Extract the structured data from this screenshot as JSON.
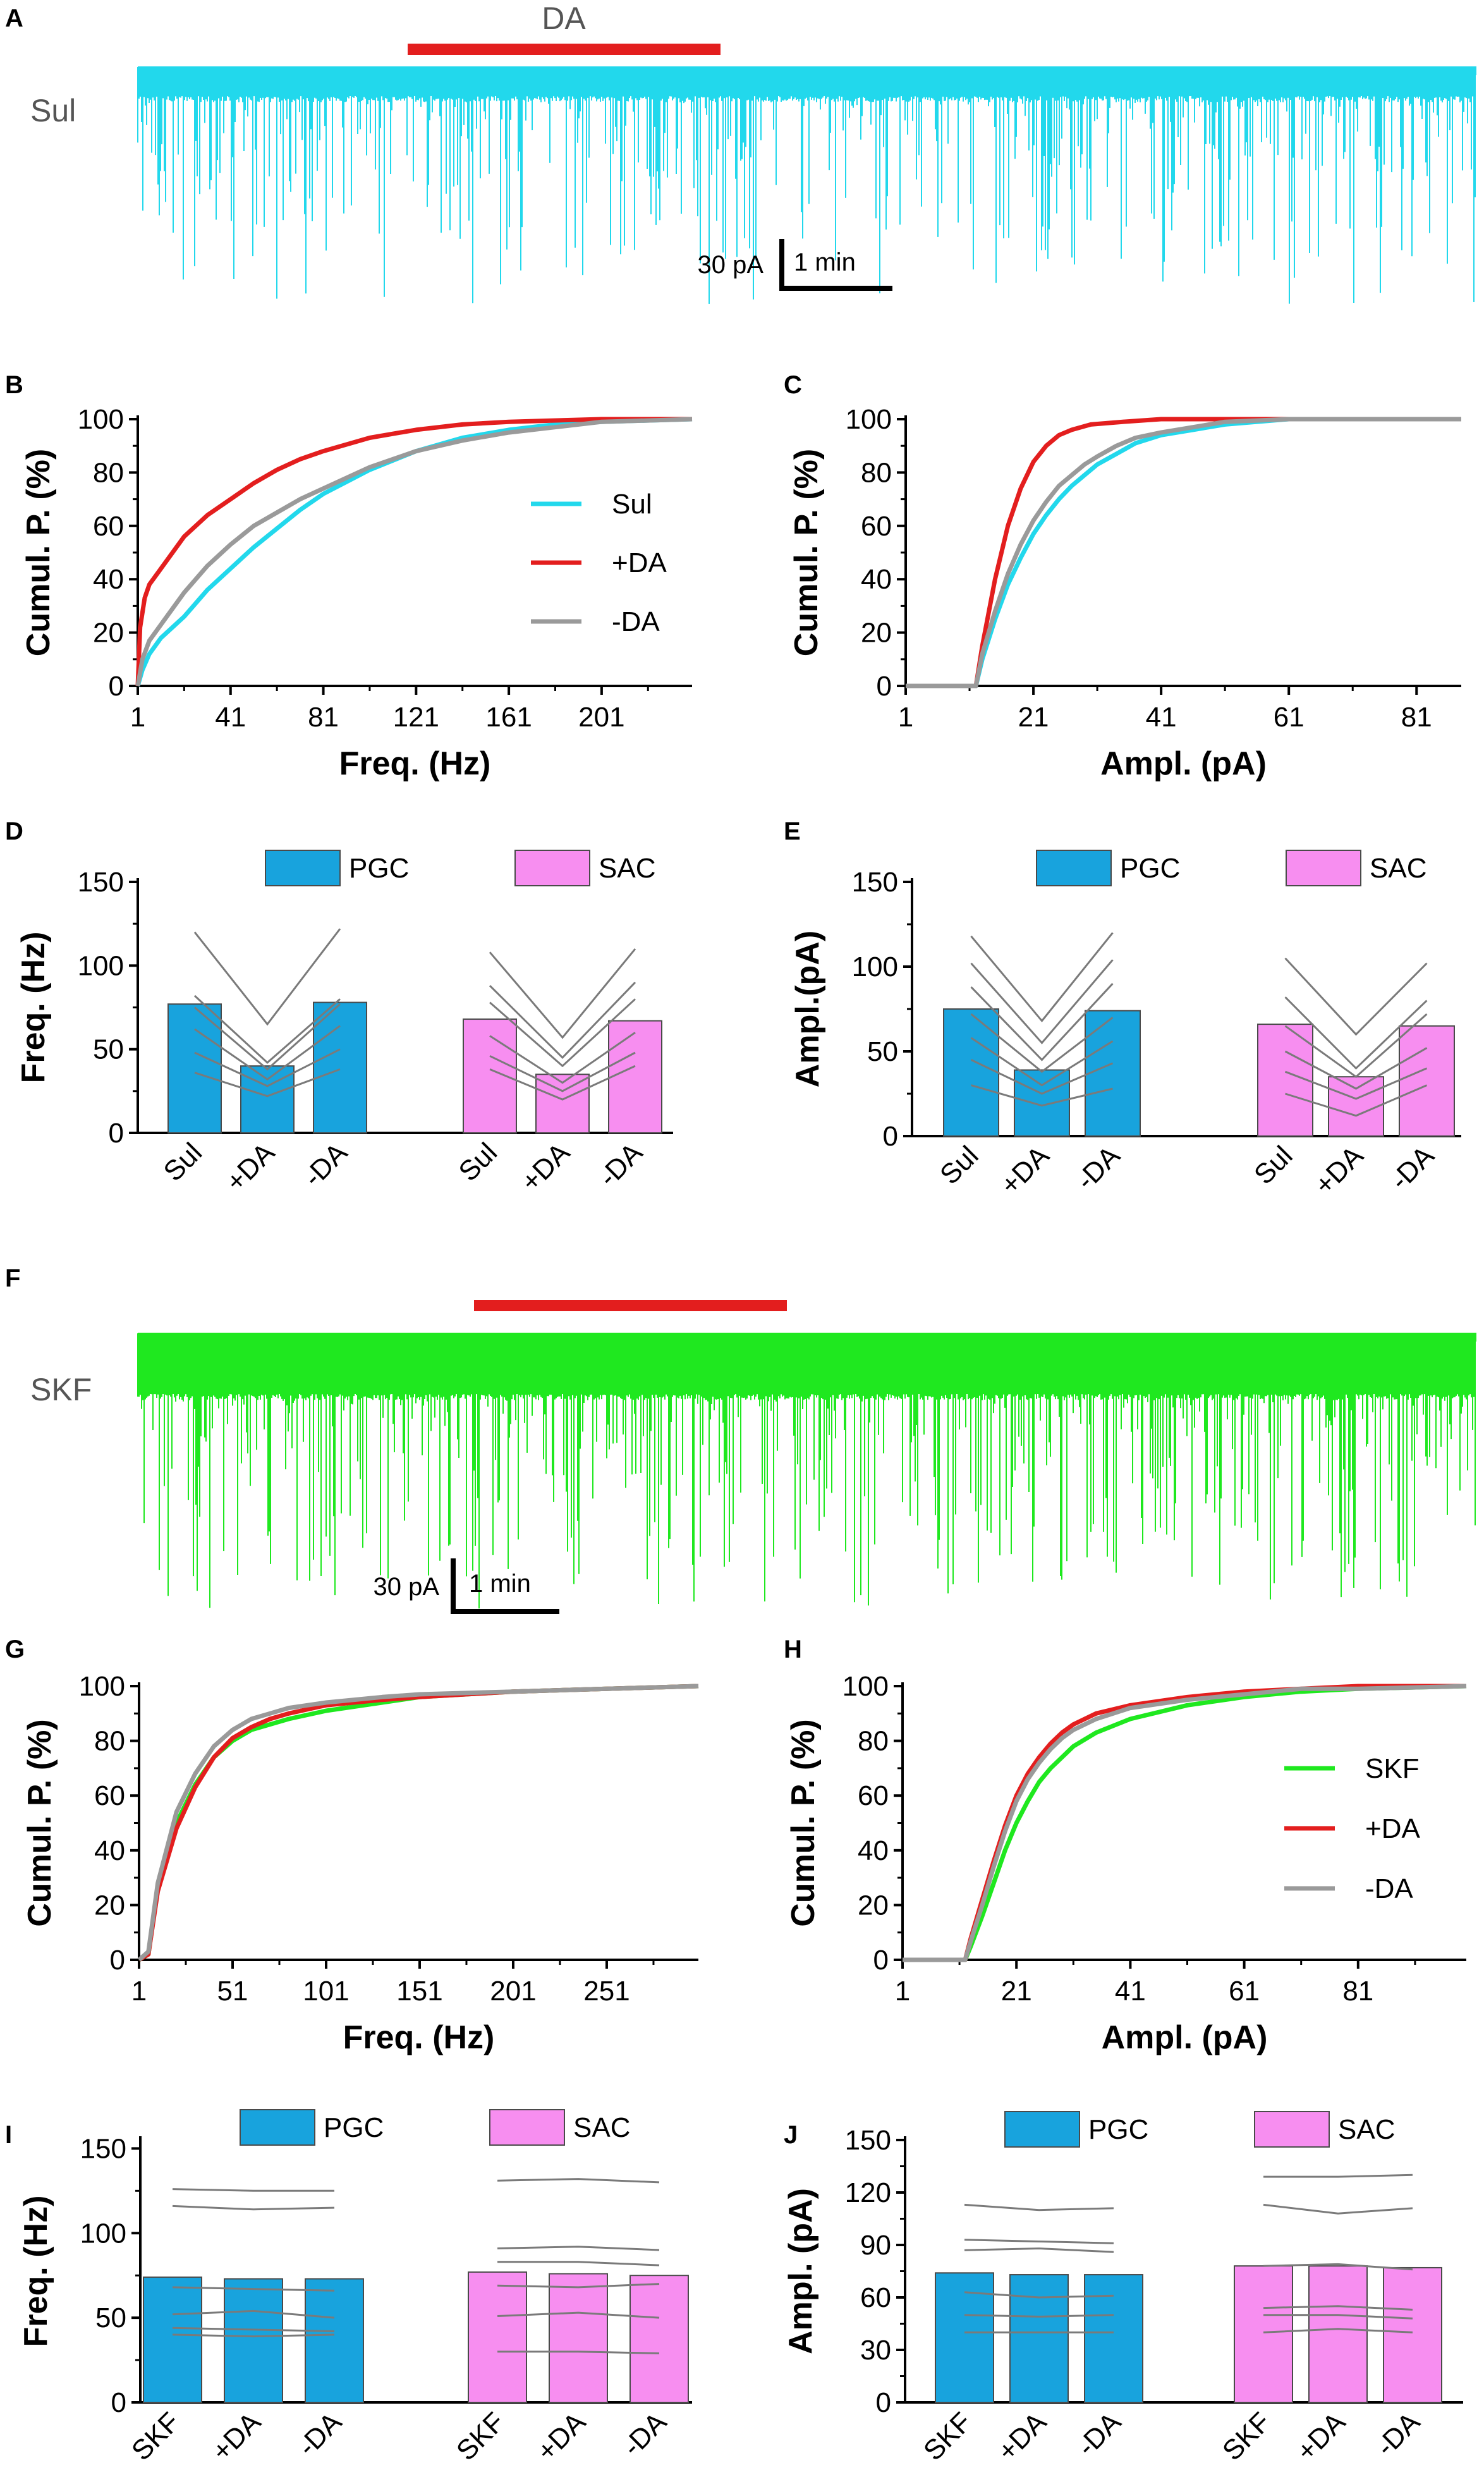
{
  "colors": {
    "sul": "#22d8ec",
    "skf": "#1fe81f",
    "da": "#e31e1e",
    "wash": "#9a9a9a",
    "pgc": "#18a3dd",
    "sac": "#f78ef0",
    "paired": "#7a7a7a"
  },
  "panels": {
    "A": "A",
    "B": "B",
    "C": "C",
    "D": "D",
    "E": "E",
    "F": "F",
    "G": "G",
    "H": "H",
    "I": "I",
    "J": "J"
  },
  "traces": {
    "A": {
      "label": "Sul",
      "drug_bar_label": "DA",
      "scale_y": "30 pA",
      "scale_x": "1 min"
    },
    "F": {
      "label": "SKF",
      "scale_y": "30 pA",
      "scale_x": "1 min"
    }
  },
  "chart_data": [
    {
      "id": "B",
      "type": "line",
      "xlabel": "Freq. (Hz)",
      "ylabel": "Cumul. P. (%)",
      "xlim": [
        1,
        240
      ],
      "ylim": [
        0,
        100
      ],
      "xticks": [
        1,
        41,
        81,
        121,
        161,
        201
      ],
      "yticks": [
        0,
        20,
        40,
        60,
        80,
        100
      ],
      "legend": [
        "Sul",
        "+DA",
        "-DA"
      ],
      "series": [
        {
          "name": "Sul",
          "x": [
            1,
            3,
            6,
            11,
            21,
            31,
            41,
            51,
            61,
            71,
            81,
            101,
            121,
            141,
            161,
            181,
            201,
            240
          ],
          "y": [
            0,
            6,
            12,
            18,
            26,
            36,
            44,
            52,
            59,
            66,
            72,
            81,
            88,
            93,
            96,
            98,
            99,
            100
          ]
        },
        {
          "name": "+DA",
          "x": [
            1,
            2,
            4,
            6,
            11,
            21,
            31,
            41,
            51,
            61,
            71,
            81,
            101,
            121,
            141,
            161,
            201,
            240
          ],
          "y": [
            0,
            22,
            33,
            38,
            44,
            56,
            64,
            70,
            76,
            81,
            85,
            88,
            93,
            96,
            98,
            99,
            100,
            100
          ]
        },
        {
          "name": "-DA",
          "x": [
            1,
            3,
            6,
            11,
            21,
            31,
            41,
            51,
            61,
            71,
            81,
            101,
            121,
            141,
            161,
            181,
            201,
            240
          ],
          "y": [
            0,
            10,
            17,
            23,
            35,
            45,
            53,
            60,
            65,
            70,
            74,
            82,
            88,
            92,
            95,
            97,
            99,
            100
          ]
        }
      ]
    },
    {
      "id": "C",
      "type": "line",
      "xlabel": "Ampl. (pA)",
      "ylabel": "Cumul. P. (%)",
      "xlim": [
        1,
        88
      ],
      "ylim": [
        0,
        100
      ],
      "xticks": [
        1,
        21,
        41,
        61,
        81
      ],
      "yticks": [
        0,
        20,
        40,
        60,
        80,
        100
      ],
      "series": [
        {
          "name": "Sul",
          "x": [
            1,
            12,
            13,
            15,
            17,
            19,
            21,
            23,
            25,
            27,
            29,
            31,
            34,
            37,
            41,
            46,
            51,
            61,
            88
          ],
          "y": [
            0,
            0,
            10,
            25,
            38,
            48,
            57,
            64,
            70,
            75,
            79,
            83,
            87,
            91,
            94,
            96,
            98,
            100,
            100
          ]
        },
        {
          "name": "+DA",
          "x": [
            1,
            12,
            13,
            15,
            17,
            19,
            21,
            23,
            25,
            27,
            30,
            35,
            41,
            51,
            88
          ],
          "y": [
            0,
            0,
            15,
            40,
            60,
            74,
            84,
            90,
            94,
            96,
            98,
            99,
            100,
            100,
            100
          ]
        },
        {
          "name": "-DA",
          "x": [
            1,
            12,
            13,
            15,
            17,
            19,
            21,
            23,
            25,
            27,
            29,
            31,
            34,
            37,
            41,
            46,
            51,
            61,
            88
          ],
          "y": [
            0,
            0,
            12,
            28,
            42,
            53,
            62,
            69,
            75,
            79,
            83,
            86,
            90,
            93,
            95,
            97,
            99,
            100,
            100
          ]
        }
      ]
    },
    {
      "id": "D",
      "type": "bar",
      "ylabel": "Freq. (Hz)",
      "ylim": [
        0,
        150
      ],
      "yticks": [
        0,
        50,
        100,
        150
      ],
      "legend": [
        "PGC",
        "SAC"
      ],
      "categories": [
        "Sul",
        "+DA",
        "-DA"
      ],
      "series": [
        {
          "name": "PGC",
          "values": [
            77,
            40,
            78
          ]
        },
        {
          "name": "SAC",
          "values": [
            68,
            35,
            67
          ]
        }
      ],
      "paired_lines": {
        "PGC": [
          [
            120,
            65,
            122
          ],
          [
            82,
            42,
            80
          ],
          [
            75,
            38,
            77
          ],
          [
            62,
            32,
            64
          ],
          [
            48,
            28,
            50
          ],
          [
            36,
            22,
            38
          ]
        ],
        "SAC": [
          [
            108,
            57,
            110
          ],
          [
            88,
            45,
            90
          ],
          [
            78,
            40,
            80
          ],
          [
            58,
            30,
            60
          ],
          [
            46,
            25,
            48
          ],
          [
            38,
            20,
            40
          ]
        ]
      }
    },
    {
      "id": "E",
      "type": "bar",
      "ylabel": "Ampl.(pA)",
      "ylim": [
        0,
        150
      ],
      "yticks": [
        0,
        50,
        100,
        150
      ],
      "legend": [
        "PGC",
        "SAC"
      ],
      "categories": [
        "Sul",
        "+DA",
        "-DA"
      ],
      "series": [
        {
          "name": "PGC",
          "values": [
            75,
            39,
            74
          ]
        },
        {
          "name": "SAC",
          "values": [
            66,
            35,
            65
          ]
        }
      ],
      "paired_lines": {
        "PGC": [
          [
            118,
            68,
            120
          ],
          [
            102,
            55,
            104
          ],
          [
            88,
            45,
            90
          ],
          [
            72,
            38,
            70
          ],
          [
            58,
            30,
            56
          ],
          [
            45,
            25,
            43
          ],
          [
            30,
            18,
            28
          ]
        ],
        "SAC": [
          [
            105,
            60,
            102
          ],
          [
            82,
            40,
            80
          ],
          [
            65,
            35,
            72
          ],
          [
            50,
            28,
            52
          ],
          [
            38,
            22,
            40
          ],
          [
            25,
            12,
            30
          ]
        ]
      }
    },
    {
      "id": "G",
      "type": "line",
      "xlabel": "Freq. (Hz)",
      "ylabel": "Cumul. P. (%)",
      "xlim": [
        1,
        300
      ],
      "ylim": [
        0,
        100
      ],
      "xticks": [
        1,
        51,
        101,
        151,
        201,
        251
      ],
      "yticks": [
        0,
        20,
        40,
        60,
        80,
        100
      ],
      "series": [
        {
          "name": "SKF",
          "x": [
            1,
            6,
            11,
            21,
            31,
            41,
            51,
            61,
            71,
            81,
            101,
            131,
            151,
            201,
            251,
            300
          ],
          "y": [
            0,
            2,
            26,
            50,
            64,
            74,
            80,
            84,
            86,
            88,
            91,
            94,
            96,
            98,
            99,
            100
          ]
        },
        {
          "name": "+DA",
          "x": [
            1,
            6,
            11,
            21,
            31,
            41,
            51,
            61,
            71,
            81,
            101,
            131,
            151,
            201,
            251,
            300
          ],
          "y": [
            0,
            2,
            25,
            48,
            63,
            74,
            81,
            85,
            88,
            90,
            93,
            95,
            96,
            98,
            99,
            100
          ]
        },
        {
          "name": "-DA",
          "x": [
            1,
            6,
            11,
            21,
            31,
            41,
            51,
            61,
            71,
            81,
            101,
            131,
            151,
            201,
            251,
            300
          ],
          "y": [
            0,
            3,
            28,
            54,
            68,
            78,
            84,
            88,
            90,
            92,
            94,
            96,
            97,
            98,
            99,
            100
          ]
        }
      ]
    },
    {
      "id": "H",
      "type": "line",
      "xlabel": "Ampl. (pA)",
      "ylabel": "Cumul. P. (%)",
      "xlim": [
        1,
        100
      ],
      "ylim": [
        0,
        100
      ],
      "xticks": [
        1,
        21,
        41,
        61,
        81
      ],
      "yticks": [
        0,
        20,
        40,
        60,
        80,
        100
      ],
      "legend": [
        "SKF",
        "+DA",
        "-DA"
      ],
      "series": [
        {
          "name": "SKF",
          "x": [
            1,
            12,
            13,
            15,
            17,
            19,
            21,
            23,
            25,
            27,
            29,
            31,
            35,
            41,
            51,
            61,
            71,
            81,
            100
          ],
          "y": [
            0,
            0,
            5,
            16,
            28,
            40,
            50,
            58,
            65,
            70,
            74,
            78,
            83,
            88,
            93,
            96,
            98,
            99,
            100
          ]
        },
        {
          "name": "+DA",
          "x": [
            1,
            12,
            13,
            15,
            17,
            19,
            21,
            23,
            25,
            27,
            29,
            31,
            35,
            41,
            51,
            61,
            71,
            81,
            100
          ],
          "y": [
            0,
            0,
            8,
            22,
            36,
            49,
            60,
            68,
            74,
            79,
            83,
            86,
            90,
            93,
            96,
            98,
            99,
            100,
            100
          ]
        },
        {
          "name": "-DA",
          "x": [
            1,
            12,
            13,
            15,
            17,
            19,
            21,
            23,
            25,
            27,
            29,
            31,
            35,
            41,
            51,
            61,
            71,
            81,
            100
          ],
          "y": [
            0,
            0,
            7,
            20,
            34,
            47,
            58,
            66,
            72,
            77,
            81,
            84,
            88,
            92,
            95,
            97,
            99,
            99,
            100
          ]
        }
      ]
    },
    {
      "id": "I",
      "type": "bar",
      "ylabel": "Freq. (Hz)",
      "ylim": [
        0,
        155
      ],
      "yticks": [
        0,
        50,
        100,
        150
      ],
      "legend": [
        "PGC",
        "SAC"
      ],
      "categories": [
        "SKF",
        "+DA",
        "-DA"
      ],
      "series": [
        {
          "name": "PGC",
          "values": [
            74,
            73,
            73
          ]
        },
        {
          "name": "SAC",
          "values": [
            77,
            76,
            75
          ]
        }
      ],
      "paired_lines": {
        "PGC": [
          [
            126,
            125,
            125
          ],
          [
            116,
            114,
            115
          ],
          [
            68,
            67,
            66
          ],
          [
            52,
            54,
            50
          ],
          [
            44,
            43,
            42
          ],
          [
            40,
            39,
            40
          ]
        ],
        "SAC": [
          [
            131,
            132,
            130
          ],
          [
            91,
            92,
            90
          ],
          [
            83,
            83,
            81
          ],
          [
            69,
            68,
            70
          ],
          [
            51,
            53,
            50
          ],
          [
            30,
            30,
            29
          ]
        ]
      }
    },
    {
      "id": "J",
      "type": "bar",
      "ylabel": "Ampl. (pA)",
      "ylim": [
        0,
        150
      ],
      "yticks": [
        0,
        30,
        60,
        90,
        120,
        150
      ],
      "legend": [
        "PGC",
        "SAC"
      ],
      "categories": [
        "SKF",
        "+DA",
        "-DA"
      ],
      "series": [
        {
          "name": "PGC",
          "values": [
            74,
            73,
            73
          ]
        },
        {
          "name": "SAC",
          "values": [
            78,
            78,
            77
          ]
        }
      ],
      "paired_lines": {
        "PGC": [
          [
            113,
            110,
            111
          ],
          [
            93,
            92,
            91
          ],
          [
            87,
            88,
            86
          ],
          [
            63,
            60,
            61
          ],
          [
            50,
            49,
            50
          ],
          [
            40,
            40,
            40
          ]
        ],
        "SAC": [
          [
            129,
            129,
            130
          ],
          [
            113,
            108,
            111
          ],
          [
            78,
            79,
            76
          ],
          [
            54,
            55,
            53
          ],
          [
            50,
            50,
            48
          ],
          [
            40,
            42,
            40
          ]
        ]
      }
    }
  ]
}
